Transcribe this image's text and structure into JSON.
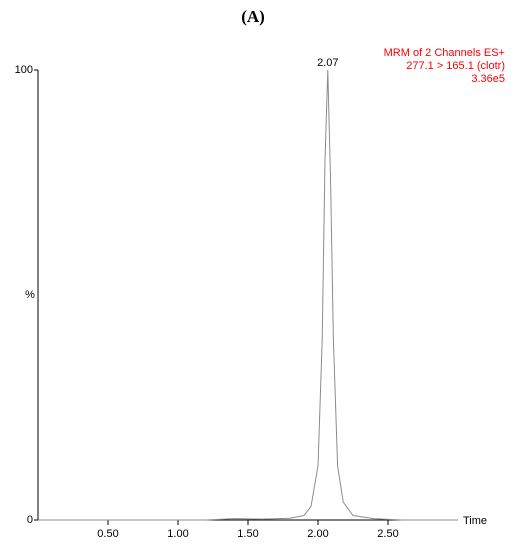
{
  "chart_data": {
    "type": "line",
    "title": "(A)",
    "x_label": "Time",
    "y_label": "%",
    "annotation": [
      "MRM of 2 Channels ES+",
      "277.1 > 165.1 (clotr)",
      "3.36e5"
    ],
    "peak_label": 2.07,
    "x": [
      0,
      1.2,
      1.4,
      1.6,
      1.8,
      1.9,
      1.95,
      2.0,
      2.03,
      2.05,
      2.07,
      2.09,
      2.11,
      2.14,
      2.18,
      2.25,
      2.4,
      2.6,
      3.0
    ],
    "series": [
      {
        "color": "#8c8c8c",
        "values": [
          0,
          0,
          0.3,
          0.2,
          0.4,
          1,
          3,
          12,
          40,
          80,
          100,
          75,
          40,
          12,
          4,
          1,
          0.3,
          0,
          0
        ]
      }
    ],
    "xlim": [
      0,
      3
    ],
    "ylim": [
      0,
      100
    ],
    "xticks": [
      {
        "value": 0.5,
        "label": "0.50"
      },
      {
        "value": 1,
        "label": "1.00"
      },
      {
        "value": 1.5,
        "label": "1.50"
      },
      {
        "value": 2,
        "label": "2.00"
      },
      {
        "value": 2.5,
        "label": "2.50"
      }
    ],
    "yticks": [
      0,
      100
    ],
    "annotation_color": "#ff0000"
  }
}
